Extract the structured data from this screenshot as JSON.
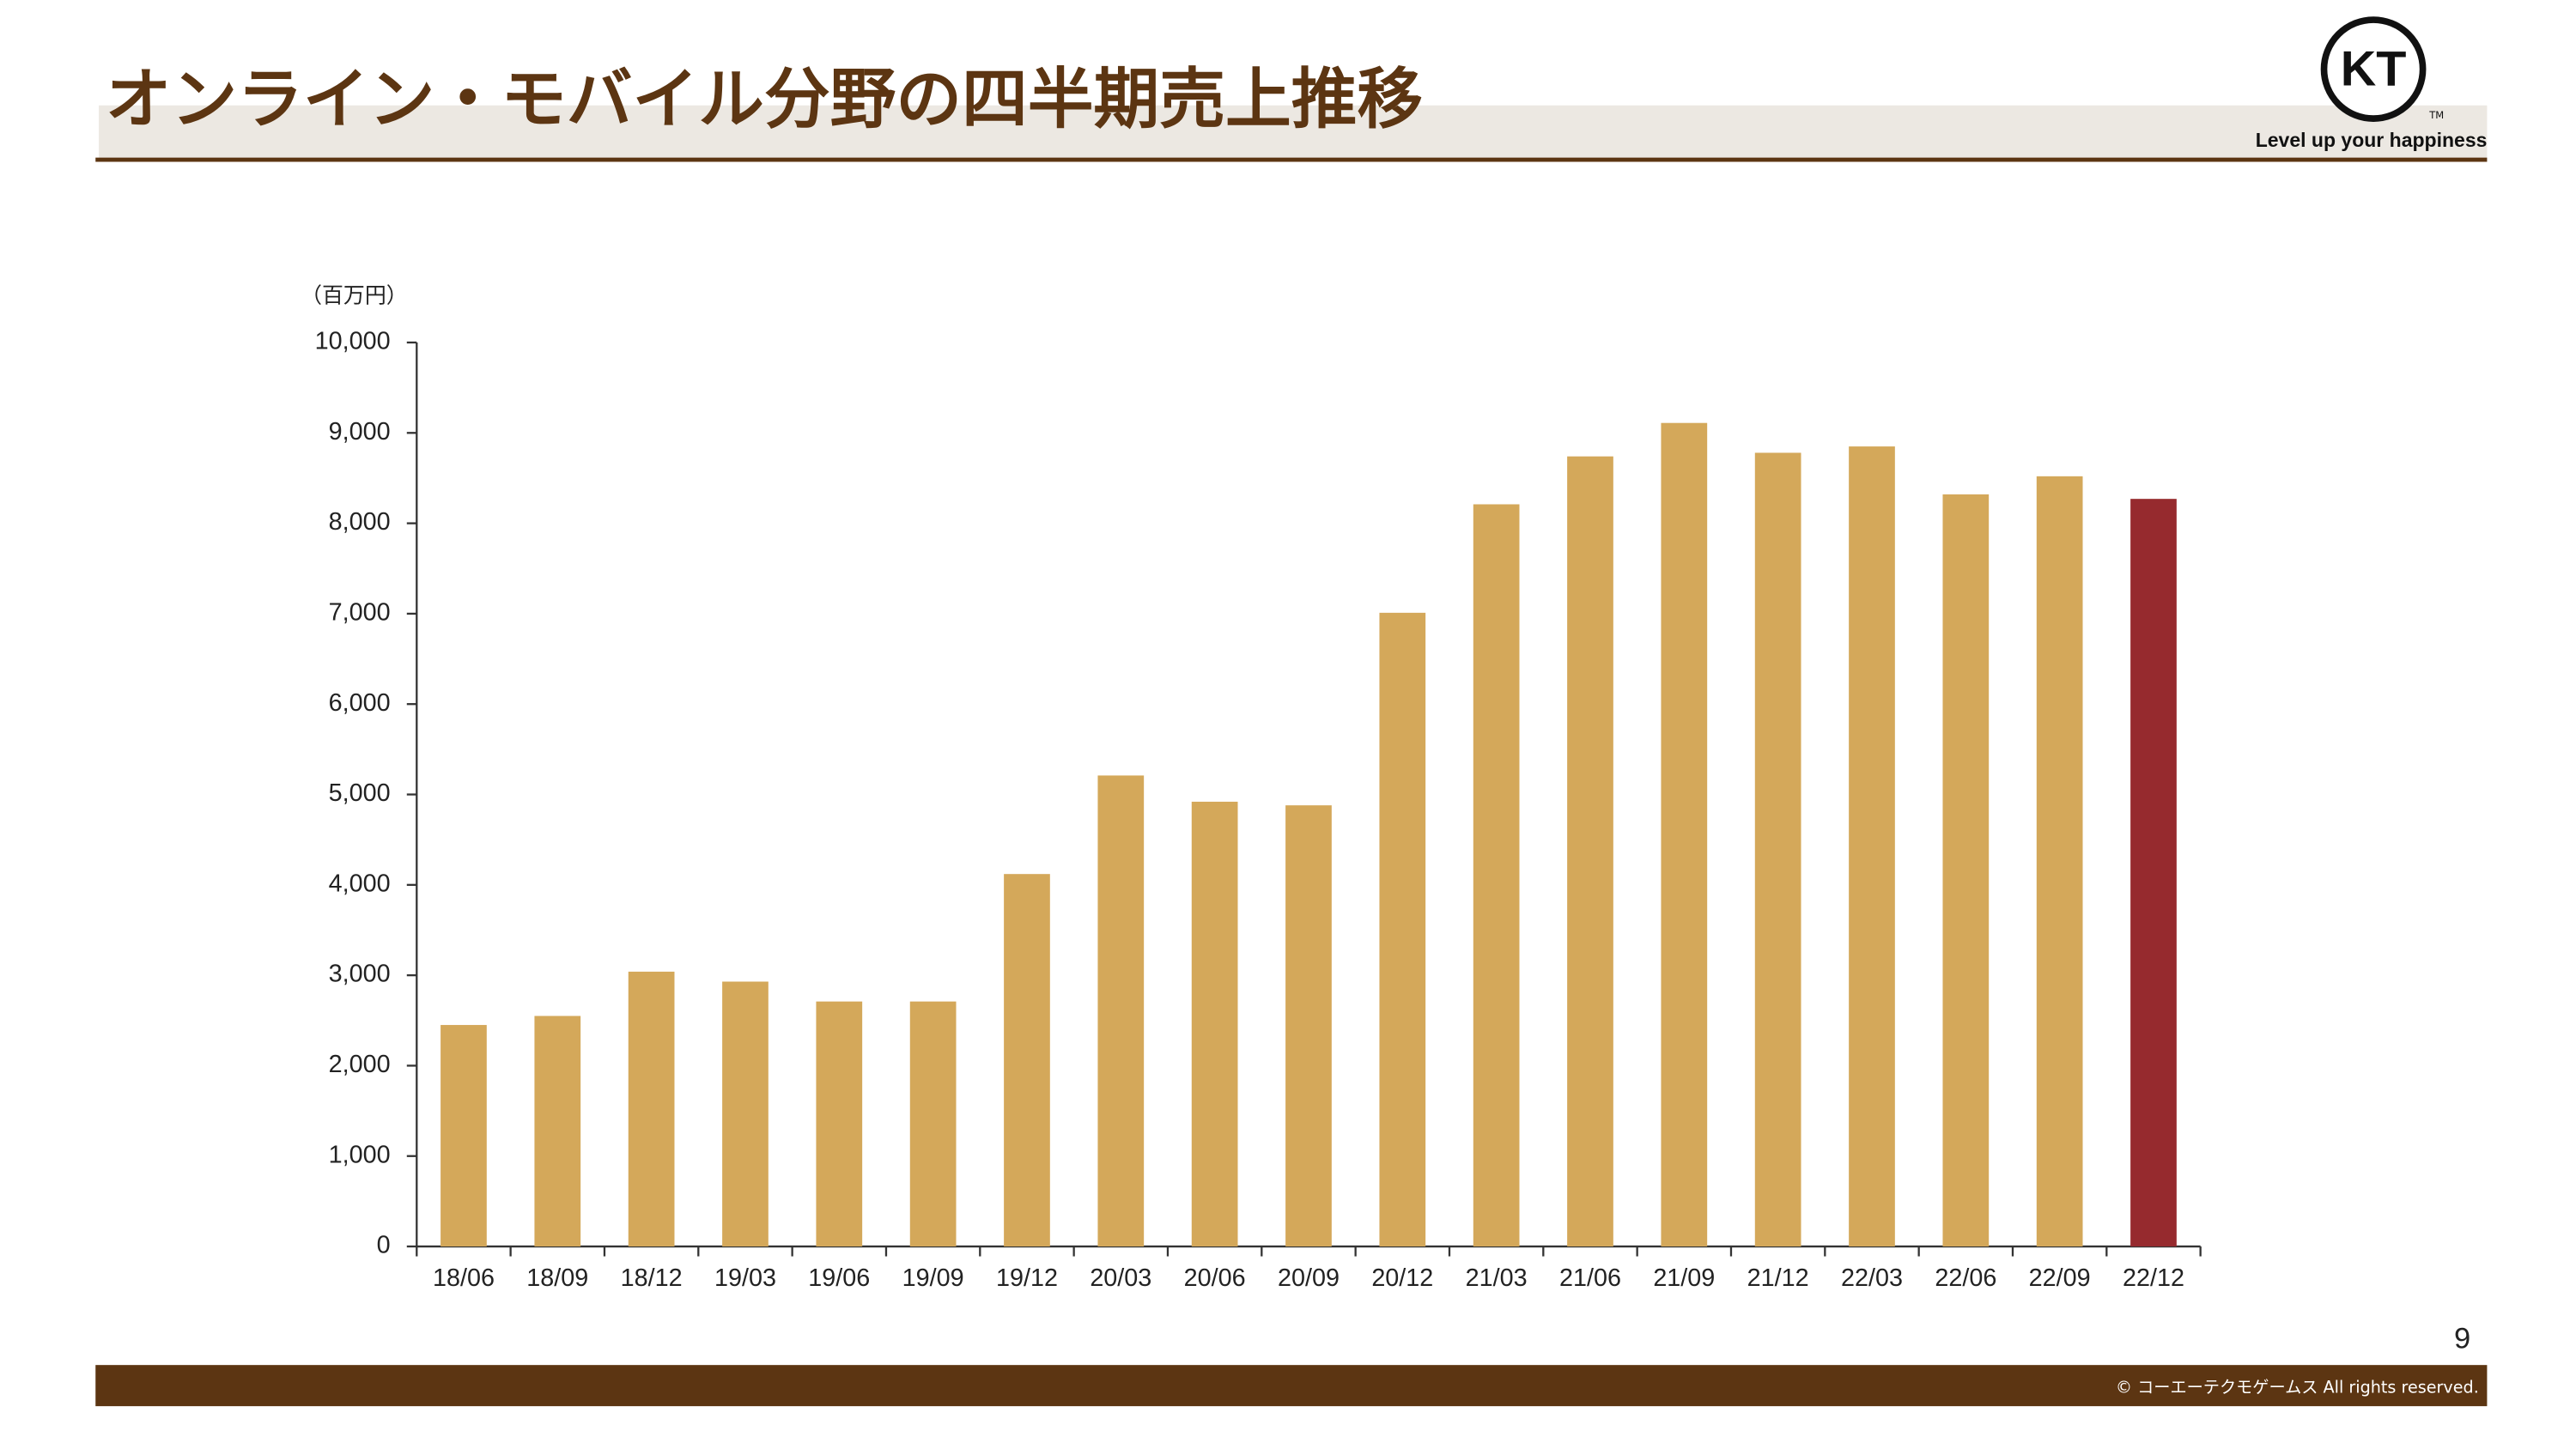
{
  "header": {
    "title": "オンライン・モバイル分野の四半期売上推移",
    "logo": {
      "mark": "KT",
      "tm": "TM",
      "tagline": "Level up your happiness"
    }
  },
  "chart_data": {
    "type": "bar",
    "y_unit_label": "（百万円）",
    "categories": [
      "18/06",
      "18/09",
      "18/12",
      "19/03",
      "19/06",
      "19/09",
      "19/12",
      "20/03",
      "20/06",
      "20/09",
      "20/12",
      "21/03",
      "21/06",
      "21/09",
      "21/12",
      "22/03",
      "22/06",
      "22/09",
      "22/12"
    ],
    "values": [
      2450,
      2550,
      3040,
      2930,
      2710,
      2710,
      4120,
      5210,
      4920,
      4880,
      7010,
      8210,
      8740,
      9110,
      8780,
      8850,
      8320,
      8520,
      8270
    ],
    "colors": [
      "#d4a85a",
      "#d4a85a",
      "#d4a85a",
      "#d4a85a",
      "#d4a85a",
      "#d4a85a",
      "#d4a85a",
      "#d4a85a",
      "#d4a85a",
      "#d4a85a",
      "#d4a85a",
      "#d4a85a",
      "#d4a85a",
      "#d4a85a",
      "#d4a85a",
      "#d4a85a",
      "#d4a85a",
      "#d4a85a",
      "#962a2e"
    ],
    "ylim": [
      0,
      10000
    ],
    "yticks": [
      0,
      {
        "value": 1000,
        "label": "1,000"
      },
      {
        "value": 2000,
        "label": "2,000"
      },
      {
        "value": 3000,
        "label": "3,000"
      },
      {
        "value": 4000,
        "label": "4,000"
      },
      {
        "value": 5000,
        "label": "5,000"
      },
      {
        "value": 6000,
        "label": "6,000"
      },
      {
        "value": 7000,
        "label": "7,000"
      },
      {
        "value": 8000,
        "label": "8,000"
      },
      {
        "value": 9000,
        "label": "9,000"
      },
      {
        "value": 10000,
        "label": "10,000"
      }
    ],
    "grid": false
  },
  "footer": {
    "page_number": "9",
    "copyright": "© コーエーテクモゲームス All rights reserved."
  }
}
